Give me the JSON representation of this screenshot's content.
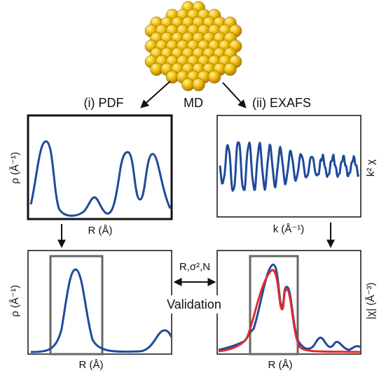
{
  "labels": {
    "md": "MD",
    "pdf": "(i) PDF",
    "exafs": "(ii) EXAFS",
    "params": "R,σ²,N",
    "validation": "Validation"
  },
  "panels": [
    {
      "x_label": "R (Å)",
      "y_label": "ρ (Å⁻¹)"
    },
    {
      "x_label": "k (Å⁻¹)",
      "y_label": "k² χ"
    },
    {
      "x_label": "R (Å)",
      "y_label": "ρ (Å⁻¹)"
    },
    {
      "x_label": "R (Å)",
      "y_label": "|χ| (Å⁻³)"
    }
  ]
}
